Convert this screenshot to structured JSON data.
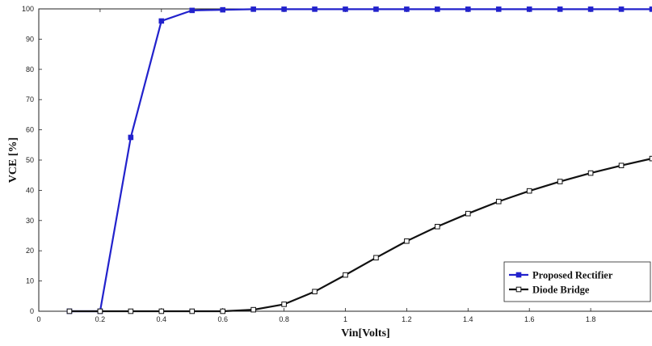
{
  "chart_data": {
    "type": "line",
    "xlabel": "Vin[Volts]",
    "ylabel": "VCE [%]",
    "xlim": [
      0,
      2
    ],
    "ylim": [
      0,
      100
    ],
    "xticks": [
      "0",
      "0.2",
      "0.4",
      "0.6",
      "0.8",
      "1",
      "1.2",
      "1.4",
      "1.6",
      "1.8"
    ],
    "yticks": [
      "0",
      "10",
      "20",
      "30",
      "40",
      "50",
      "60",
      "70",
      "80",
      "90",
      "100"
    ],
    "grid": false,
    "legend_position": "bottom-right",
    "x": [
      0.1,
      0.2,
      0.3,
      0.4,
      0.5,
      0.6,
      0.7,
      0.8,
      0.9,
      1.0,
      1.1,
      1.2,
      1.3,
      1.4,
      1.5,
      1.6,
      1.7,
      1.8,
      1.9,
      2.0
    ],
    "series": [
      {
        "name": "Proposed Rectifier",
        "color": "#2222cc",
        "marker": "filled-square",
        "values": [
          0,
          0,
          57.5,
          96,
          99.5,
          99.7,
          99.9,
          99.9,
          99.9,
          99.9,
          99.9,
          99.9,
          99.9,
          99.9,
          99.9,
          99.9,
          99.9,
          99.9,
          99.9,
          99.9
        ]
      },
      {
        "name": "Diode Bridge",
        "color": "#111111",
        "marker": "open-square",
        "values": [
          0,
          0,
          0,
          0,
          0,
          0,
          0.5,
          2.3,
          6.5,
          12,
          17.7,
          23.2,
          28,
          32.3,
          36.3,
          39.8,
          42.9,
          45.7,
          48.2,
          50.5
        ]
      }
    ]
  }
}
